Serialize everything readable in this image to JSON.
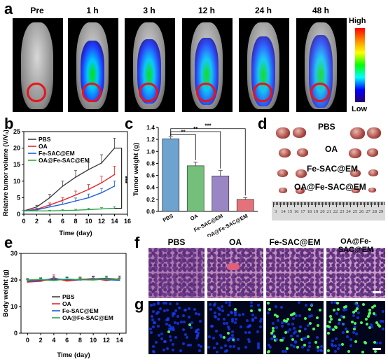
{
  "panels": {
    "a": "a",
    "b": "b",
    "c": "c",
    "d": "d",
    "e": "e",
    "f": "f",
    "g": "g"
  },
  "panel_a": {
    "timepoints": [
      "Pre",
      "1 h",
      "3 h",
      "12 h",
      "24 h",
      "48 h"
    ],
    "colorbar_high": "High",
    "colorbar_low": "Low"
  },
  "panel_d": {
    "groups": [
      "PBS",
      "OA",
      "Fe-SAC@EM",
      "OA@Fe-SAC@EM"
    ],
    "ruler_ticks": [
      "3",
      "14",
      "15",
      "16",
      "17",
      "18",
      "19",
      "20",
      "21",
      "22",
      "23",
      "24",
      "25",
      "26",
      "27",
      "28",
      "29"
    ]
  },
  "panel_f": {
    "groups": [
      "PBS",
      "OA",
      "Fe-SAC@EM",
      "OA@Fe-SAC@EM"
    ]
  },
  "chart_data": [
    {
      "panel": "b",
      "type": "line",
      "xlabel": "Time (day)",
      "ylabel": "Relative tumor volume (V/V₀)",
      "xlim": [
        0,
        16
      ],
      "ylim": [
        0,
        25
      ],
      "xticks": [
        0,
        2,
        4,
        6,
        8,
        10,
        12,
        14,
        16
      ],
      "yticks": [
        0,
        5,
        10,
        15,
        20,
        25
      ],
      "x": [
        0,
        2,
        4,
        6,
        8,
        10,
        12,
        14
      ],
      "series": [
        {
          "name": "PBS",
          "color": "#404040",
          "values": [
            1,
            2.2,
            5,
            8.5,
            11.2,
            13.5,
            15.5,
            20
          ],
          "err": [
            0.2,
            0.5,
            1.0,
            1.5,
            2.0,
            2.2,
            2.5,
            3.0
          ]
        },
        {
          "name": "OA",
          "color": "#e8262a",
          "values": [
            1,
            1.5,
            2.8,
            4.2,
            5.8,
            7.5,
            9.5,
            12
          ],
          "err": [
            0.2,
            0.3,
            0.6,
            0.8,
            1.2,
            1.5,
            2.0,
            2.5
          ]
        },
        {
          "name": "Fe-SAC@EM",
          "color": "#1f5fd6",
          "values": [
            1,
            1.3,
            2.2,
            3.0,
            4.0,
            5.0,
            6.5,
            8.5
          ],
          "err": [
            0.2,
            0.3,
            0.5,
            0.7,
            0.9,
            1.1,
            1.3,
            1.5
          ]
        },
        {
          "name": "OA@Fe-SAC@EM",
          "color": "#2ea44a",
          "values": [
            1,
            1.0,
            1.0,
            1.1,
            1.2,
            1.4,
            1.6,
            1.8
          ],
          "err": [
            0.1,
            0.2,
            0.2,
            0.3,
            0.3,
            0.4,
            0.4,
            0.5
          ]
        }
      ],
      "annotations": [
        "***"
      ]
    },
    {
      "panel": "c",
      "type": "bar",
      "ylabel": "Tumor weight (g)",
      "ylim": [
        0,
        1.4
      ],
      "yticks": [
        0.0,
        0.2,
        0.4,
        0.6,
        0.8,
        1.0,
        1.2,
        1.4
      ],
      "categories": [
        "PBS",
        "OA",
        "Fe-SAC@EM",
        "OA@Fe-SAC@EM"
      ],
      "values": [
        1.21,
        0.76,
        0.59,
        0.2
      ],
      "err": [
        0.04,
        0.06,
        0.09,
        0.03
      ],
      "colors": [
        "#6ea3cf",
        "#74c07a",
        "#9a86c4",
        "#e4727a"
      ],
      "annotations": [
        "**",
        "**",
        "***"
      ]
    },
    {
      "panel": "e",
      "type": "line",
      "xlabel": "Time (day)",
      "ylabel": "Body weight (g)",
      "xlim": [
        -1,
        15
      ],
      "ylim": [
        0,
        30
      ],
      "xticks": [
        0,
        2,
        4,
        6,
        8,
        10,
        12,
        14
      ],
      "yticks": [
        0,
        10,
        20,
        30
      ],
      "x": [
        0,
        2,
        4,
        6,
        8,
        10,
        12,
        14
      ],
      "series": [
        {
          "name": "PBS",
          "color": "#404040",
          "values": [
            19.5,
            19.8,
            20.2,
            20.0,
            20.3,
            20.4,
            20.6,
            20.3
          ],
          "err": [
            0.8,
            0.8,
            0.9,
            0.9,
            0.8,
            0.9,
            0.9,
            1.2
          ]
        },
        {
          "name": "OA",
          "color": "#e8262a",
          "values": [
            19.2,
            19.5,
            20.8,
            19.6,
            20.1,
            20.6,
            19.8,
            20.5
          ],
          "err": [
            0.8,
            0.8,
            1.1,
            0.8,
            0.9,
            0.9,
            0.8,
            1.0
          ]
        },
        {
          "name": "Fe-SAC@EM",
          "color": "#1f5fd6",
          "values": [
            19.6,
            20.0,
            20.4,
            20.2,
            20.0,
            20.3,
            20.1,
            19.9
          ],
          "err": [
            0.6,
            0.7,
            0.8,
            0.8,
            0.7,
            0.8,
            0.9,
            0.8
          ]
        },
        {
          "name": "OA@Fe-SAC@EM",
          "color": "#2ea44a",
          "values": [
            20.0,
            20.2,
            19.8,
            20.4,
            20.1,
            20.0,
            20.3,
            20.2
          ],
          "err": [
            0.7,
            0.7,
            0.7,
            0.8,
            0.8,
            0.7,
            0.8,
            0.8
          ]
        }
      ]
    }
  ]
}
